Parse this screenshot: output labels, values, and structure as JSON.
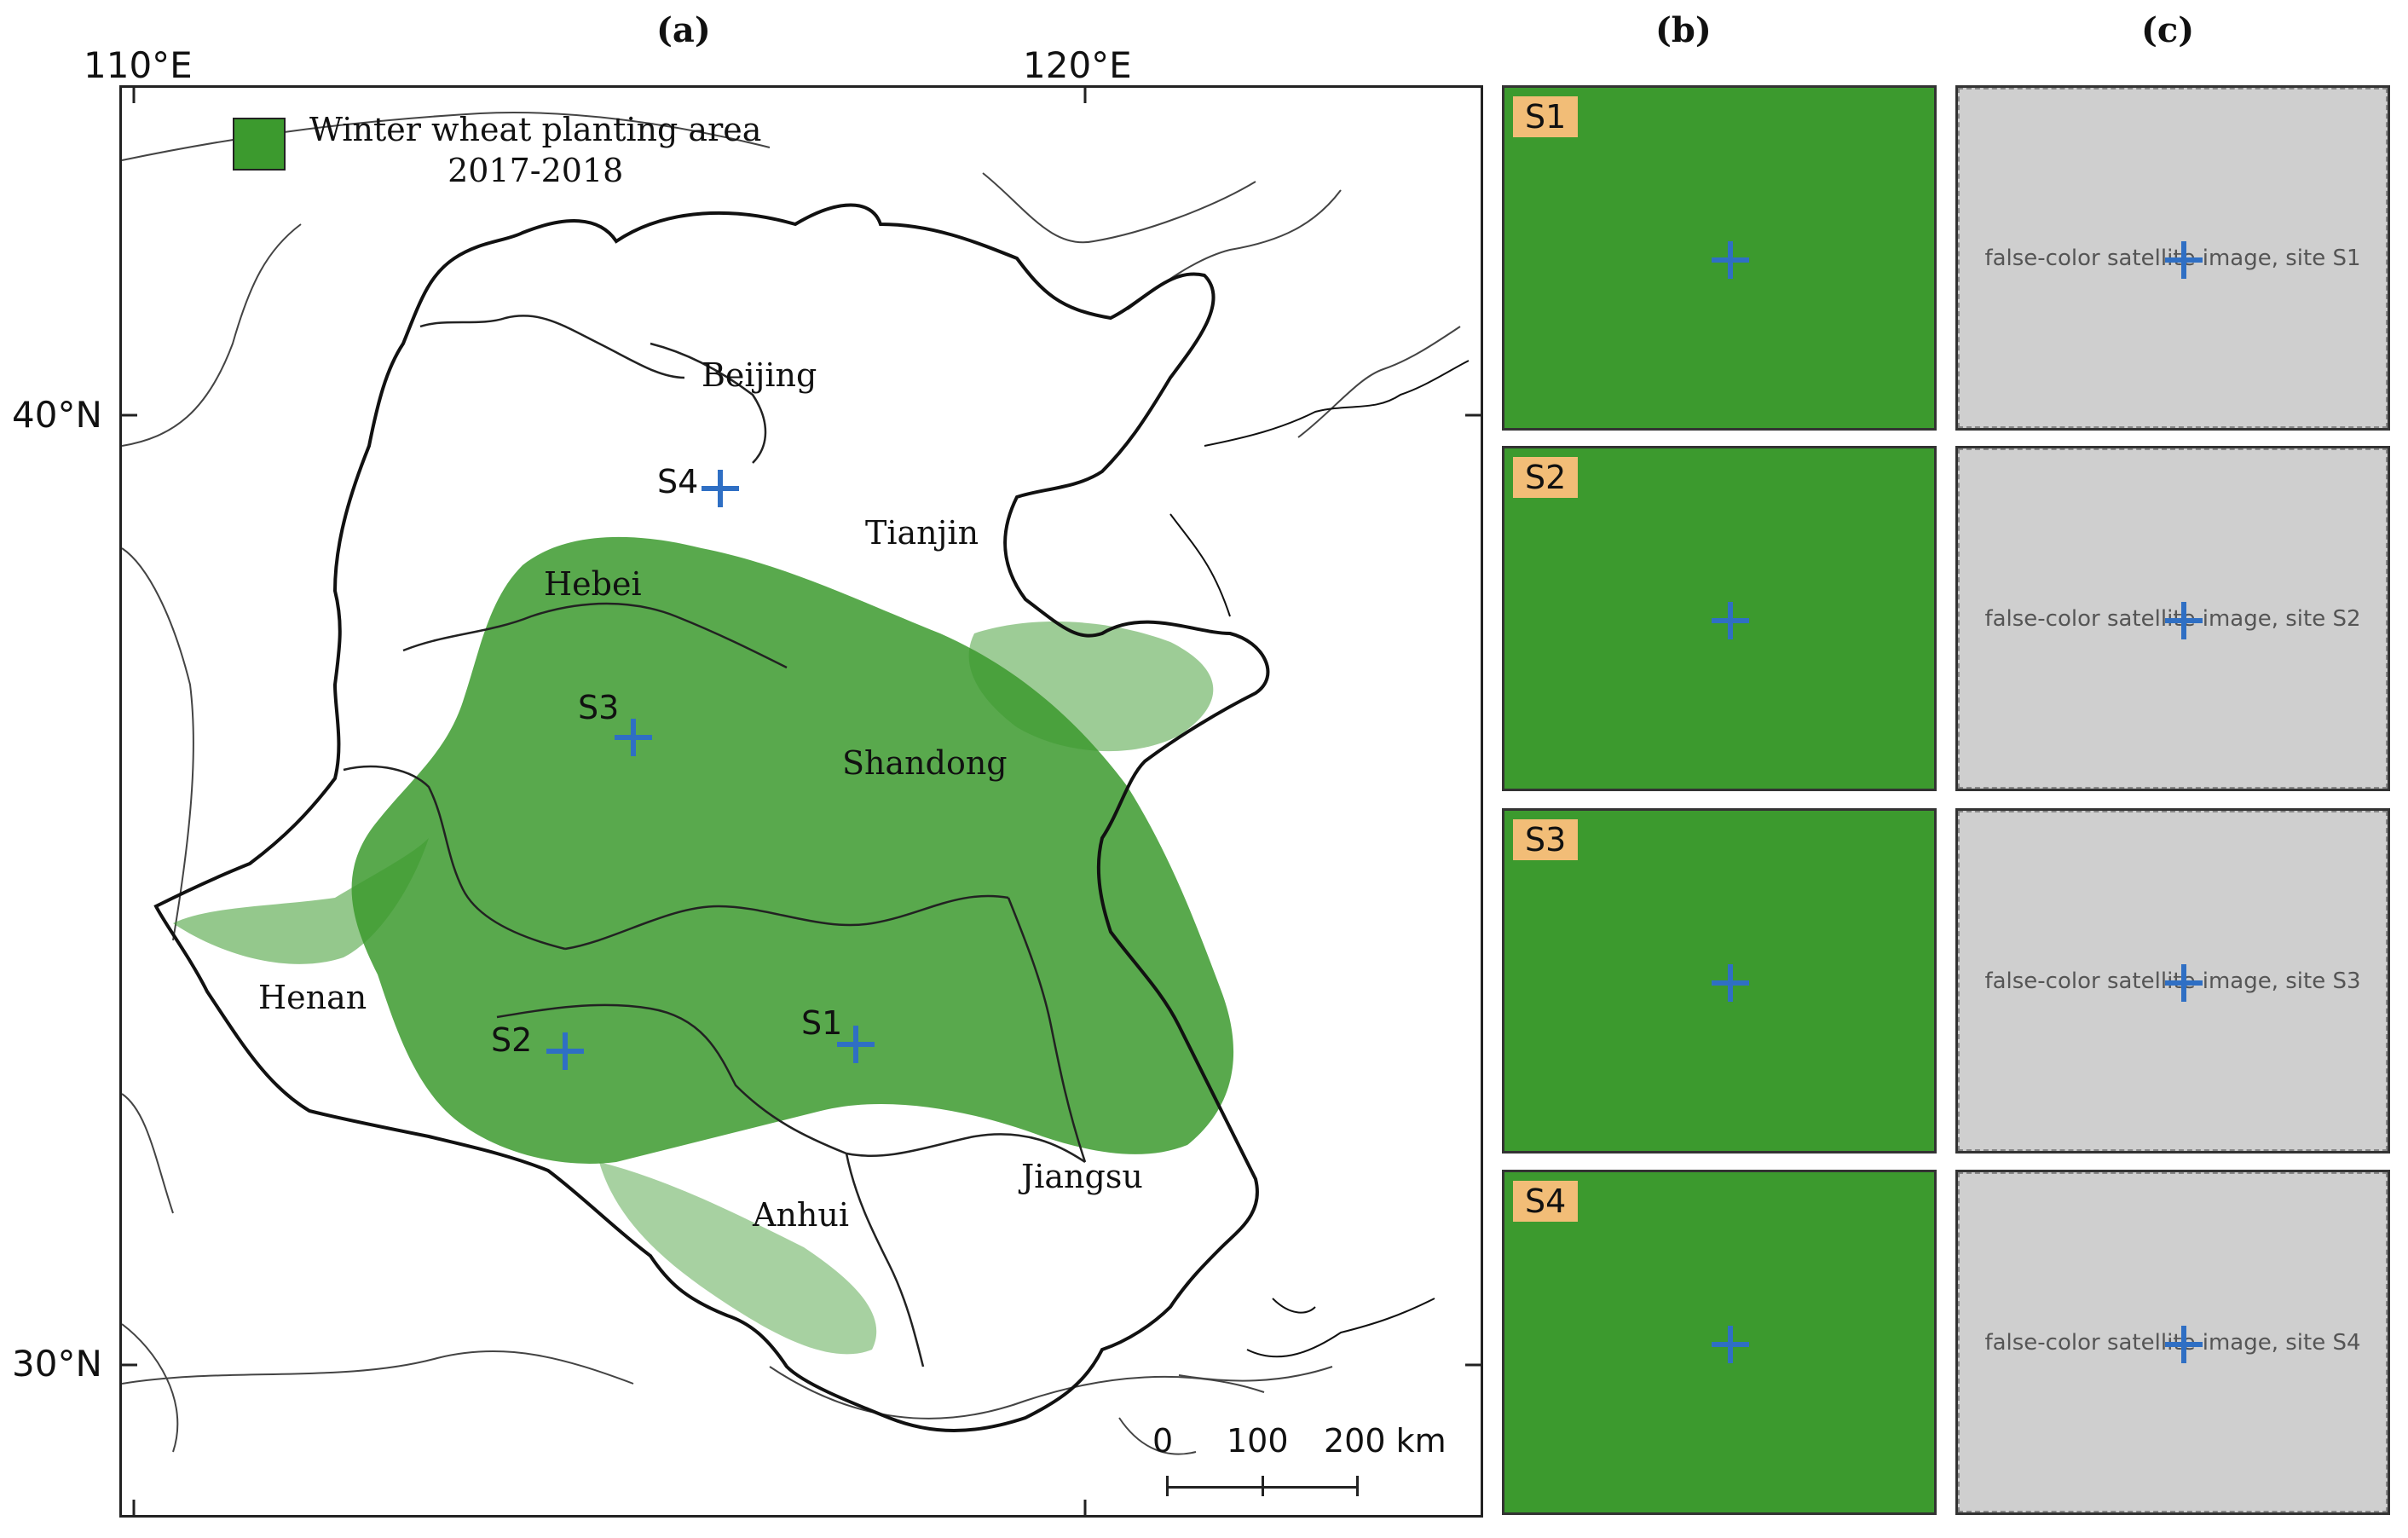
{
  "panels": {
    "a": "(a)",
    "b": "(b)",
    "c": "(c)"
  },
  "coordinates": {
    "lon_110": "110°E",
    "lon_120": "120°E",
    "lat_40": "40°N",
    "lat_30": "30°N"
  },
  "legend": {
    "line1": "Winter wheat planting area",
    "line2": "2017-2018",
    "color": "#3c9a2e"
  },
  "provinces": [
    "Beijing",
    "Tianjin",
    "Hebei",
    "Shandong",
    "Henan",
    "Anhui",
    "Jiangsu"
  ],
  "sites": [
    "S1",
    "S2",
    "S3",
    "S4"
  ],
  "scalebar": {
    "t0": "0",
    "t1": "100",
    "t2": "200 km"
  },
  "colors": {
    "wheat": "#3c9a2e",
    "site_marker": "#2f6fc4",
    "tag_bg": "#f2bd77",
    "satellite_red": "#c52a2e"
  },
  "images": {
    "satellite_s1": "false-color satellite image, site S1",
    "satellite_s2": "false-color satellite image, site S2",
    "satellite_s3": "false-color satellite image, site S3",
    "satellite_s4": "false-color satellite image, site S4"
  }
}
